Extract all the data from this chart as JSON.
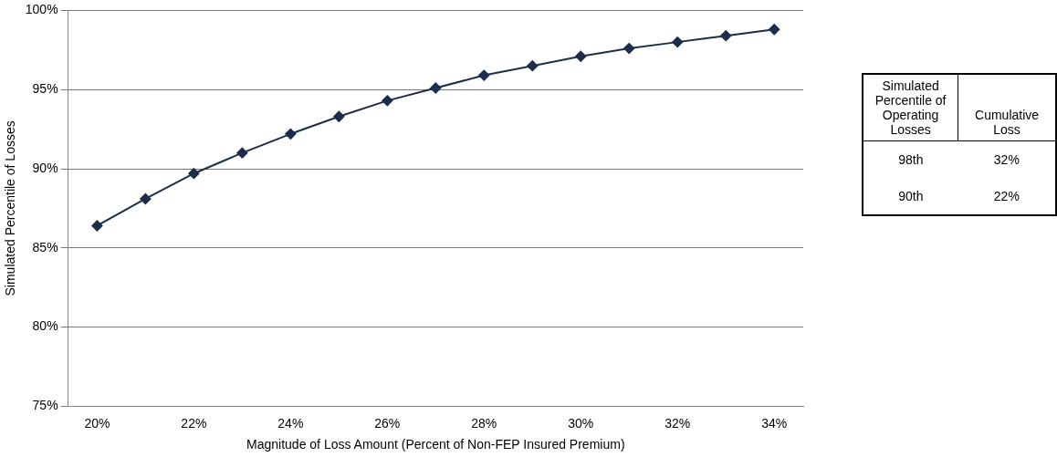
{
  "chart_data": [
    {
      "type": "line",
      "xlabel": "Magnitude of Loss Amount (Percent of Non-FEP Insured Premium)",
      "ylabel": "Simulated Percentile of Losses",
      "x": [
        20,
        21,
        22,
        23,
        24,
        25,
        26,
        27,
        28,
        29,
        30,
        31,
        32,
        33,
        34
      ],
      "series": [
        {
          "color": "#1c2e4a",
          "values": [
            86.4,
            88.1,
            89.7,
            91.0,
            92.2,
            93.3,
            94.3,
            95.1,
            95.9,
            96.5,
            97.1,
            97.6,
            98.0,
            98.4,
            98.8
          ]
        }
      ],
      "xlim": [
        19.4,
        34.6
      ],
      "xticks": [
        {
          "value": 20,
          "label": "20%"
        },
        {
          "value": 22,
          "label": "22%"
        },
        {
          "value": 24,
          "label": "24%"
        },
        {
          "value": 26,
          "label": "26%"
        },
        {
          "value": 28,
          "label": "28%"
        },
        {
          "value": 30,
          "label": "30%"
        },
        {
          "value": 32,
          "label": "32%"
        },
        {
          "value": 34,
          "label": "34%"
        }
      ],
      "ylim": [
        75,
        100
      ],
      "yticks": [
        {
          "value": 75,
          "label": "75%"
        },
        {
          "value": 80,
          "label": "80%"
        },
        {
          "value": 85,
          "label": "85%"
        },
        {
          "value": 90,
          "label": "90%"
        },
        {
          "value": 95,
          "label": "95%"
        },
        {
          "value": 100,
          "label": "100%"
        }
      ],
      "grid": "y",
      "legend": false,
      "marker": "diamond",
      "line_style": "solid"
    },
    {
      "type": "other",
      "annotations": [
        "Simulated Percentile of Operating Losses",
        "Cumulative Loss",
        "98th",
        "32%",
        "90th",
        "22%"
      ]
    }
  ]
}
